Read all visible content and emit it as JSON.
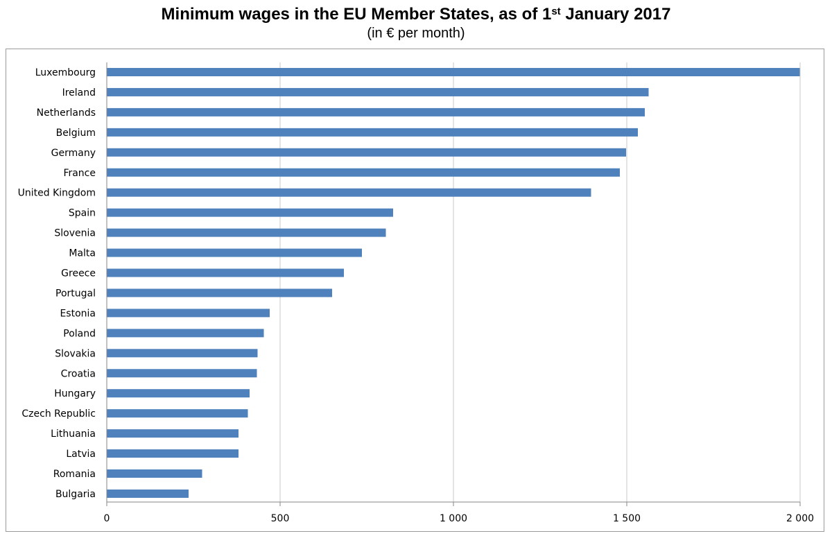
{
  "chart_data": {
    "type": "bar",
    "orientation": "horizontal",
    "title_main": "Minimum wages in the EU Member States, as of 1",
    "title_sup": "st",
    "title_end": " January 2017",
    "subtitle": "(in € per month)",
    "categories": [
      "Luxembourg",
      "Ireland",
      "Netherlands",
      "Belgium",
      "Germany",
      "France",
      "United Kingdom",
      "Spain",
      "Slovenia",
      "Malta",
      "Greece",
      "Portugal",
      "Estonia",
      "Poland",
      "Slovakia",
      "Croatia",
      "Hungary",
      "Czech Republic",
      "Lithuania",
      "Latvia",
      "Romania",
      "Bulgaria"
    ],
    "values": [
      1999,
      1563,
      1552,
      1532,
      1498,
      1480,
      1397,
      826,
      805,
      736,
      684,
      650,
      470,
      453,
      435,
      433,
      412,
      407,
      380,
      380,
      275,
      236
    ],
    "xlim": [
      0,
      2000
    ],
    "xticks": [
      0,
      500,
      1000,
      1500,
      2000
    ],
    "xtick_labels": [
      "0",
      "500",
      "1 000",
      "1 500",
      "2 000"
    ],
    "grid": "vertical",
    "bar_color": "#4f81bd"
  }
}
